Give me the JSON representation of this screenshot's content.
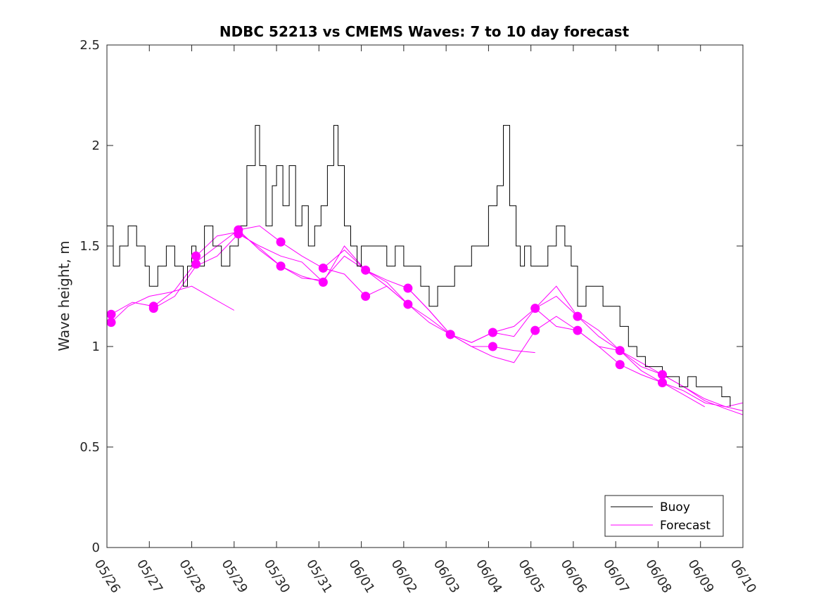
{
  "chart_data": {
    "type": "line",
    "title": "NDBC 52213 vs CMEMS Waves: 7 to 10 day forecast",
    "xlabel": "",
    "ylabel": "Wave height, m",
    "ylim": [
      0,
      2.5
    ],
    "xlim": [
      0,
      15
    ],
    "y_ticks": [
      "0",
      "0.5",
      "1",
      "1.5",
      "2",
      "2.5"
    ],
    "x_ticks": [
      "05/26",
      "05/27",
      "05/28",
      "05/29",
      "05/30",
      "05/31",
      "06/01",
      "06/02",
      "06/03",
      "06/04",
      "06/05",
      "06/06",
      "06/07",
      "06/08",
      "06/09",
      "06/10"
    ],
    "grid": false,
    "legend": {
      "location": "bottom-right",
      "entries": [
        "Buoy",
        "Forecast"
      ]
    },
    "colors": {
      "buoy": "#000000",
      "forecast": "#ff00ff"
    },
    "buoy": {
      "name": "Buoy",
      "x": [
        0,
        0.15,
        0.3,
        0.5,
        0.7,
        0.9,
        1.0,
        1.2,
        1.4,
        1.6,
        1.8,
        1.9,
        2.0,
        2.1,
        2.3,
        2.5,
        2.7,
        2.9,
        3.1,
        3.3,
        3.5,
        3.6,
        3.75,
        3.9,
        4.0,
        4.15,
        4.3,
        4.45,
        4.6,
        4.75,
        4.9,
        5.05,
        5.2,
        5.35,
        5.45,
        5.6,
        5.75,
        5.9,
        6.0,
        6.2,
        6.4,
        6.6,
        6.8,
        7.0,
        7.2,
        7.4,
        7.6,
        7.8,
        8.0,
        8.2,
        8.4,
        8.6,
        8.8,
        9.0,
        9.2,
        9.35,
        9.5,
        9.65,
        9.75,
        9.85,
        10.0,
        10.2,
        10.4,
        10.6,
        10.8,
        10.95,
        11.1,
        11.3,
        11.5,
        11.7,
        11.9,
        12.1,
        12.3,
        12.5,
        12.7,
        12.9,
        13.1,
        13.3,
        13.5,
        13.7,
        13.9,
        14.1,
        14.3,
        14.5,
        14.7
      ],
      "y": [
        1.6,
        1.4,
        1.5,
        1.6,
        1.5,
        1.4,
        1.3,
        1.4,
        1.5,
        1.4,
        1.3,
        1.4,
        1.5,
        1.4,
        1.6,
        1.5,
        1.4,
        1.5,
        1.6,
        1.9,
        2.1,
        1.9,
        1.6,
        1.8,
        1.9,
        1.7,
        1.9,
        1.6,
        1.7,
        1.5,
        1.6,
        1.7,
        1.9,
        2.1,
        1.9,
        1.6,
        1.5,
        1.4,
        1.5,
        1.5,
        1.5,
        1.4,
        1.5,
        1.4,
        1.4,
        1.3,
        1.2,
        1.3,
        1.3,
        1.4,
        1.4,
        1.5,
        1.5,
        1.7,
        1.8,
        2.1,
        1.7,
        1.5,
        1.4,
        1.5,
        1.4,
        1.4,
        1.5,
        1.6,
        1.5,
        1.4,
        1.2,
        1.3,
        1.3,
        1.2,
        1.2,
        1.1,
        1.0,
        0.95,
        0.9,
        0.9,
        0.85,
        0.85,
        0.8,
        0.85,
        0.8,
        0.8,
        0.8,
        0.75,
        0.7
      ]
    },
    "series": [
      {
        "x": [
          0.1,
          0.5,
          1.0,
          1.5,
          2.0,
          2.5,
          3.0
        ],
        "y": [
          1.12,
          1.2,
          1.25,
          1.27,
          1.3,
          1.24,
          1.18
        ]
      },
      {
        "x": [
          0.1,
          0.6,
          1.1,
          1.6,
          2.1,
          2.6,
          3.1,
          3.6,
          4.1
        ],
        "y": [
          1.16,
          1.22,
          1.2,
          1.28,
          1.42,
          1.5,
          1.58,
          1.48,
          1.4
        ]
      },
      {
        "x": [
          1.1,
          1.6,
          2.1,
          2.6,
          3.1,
          3.6,
          4.1,
          4.6,
          5.1
        ],
        "y": [
          1.19,
          1.25,
          1.4,
          1.45,
          1.56,
          1.5,
          1.45,
          1.42,
          1.32
        ]
      },
      {
        "x": [
          2.1,
          2.6,
          3.1,
          3.6,
          4.1,
          4.6,
          5.1,
          5.6,
          6.1
        ],
        "y": [
          1.45,
          1.55,
          1.57,
          1.49,
          1.4,
          1.34,
          1.33,
          1.45,
          1.38
        ]
      },
      {
        "x": [
          3.1,
          3.6,
          4.1,
          4.6,
          5.1,
          5.6,
          6.1,
          6.6,
          7.1
        ],
        "y": [
          1.58,
          1.6,
          1.52,
          1.45,
          1.39,
          1.36,
          1.25,
          1.3,
          1.21
        ]
      },
      {
        "x": [
          4.1,
          4.6,
          5.1,
          5.6,
          6.1,
          6.6,
          7.1,
          7.6,
          8.1
        ],
        "y": [
          1.4,
          1.35,
          1.32,
          1.5,
          1.38,
          1.33,
          1.29,
          1.18,
          1.06
        ]
      },
      {
        "x": [
          5.1,
          5.6,
          6.1,
          6.6,
          7.1,
          7.6,
          8.1,
          8.6,
          9.1
        ],
        "y": [
          1.39,
          1.48,
          1.38,
          1.32,
          1.21,
          1.14,
          1.06,
          1.02,
          1.07
        ]
      },
      {
        "x": [
          6.1,
          6.6,
          7.1,
          7.6,
          8.1,
          8.6,
          9.1,
          9.6,
          10.1
        ],
        "y": [
          1.38,
          1.3,
          1.21,
          1.12,
          1.06,
          1.0,
          1.0,
          0.98,
          0.97
        ]
      },
      {
        "x": [
          7.1,
          7.6,
          8.1,
          8.6,
          9.1,
          9.6,
          10.1,
          10.6,
          11.1
        ],
        "y": [
          1.29,
          1.18,
          1.06,
          1.02,
          1.07,
          1.1,
          1.19,
          1.3,
          1.15
        ]
      },
      {
        "x": [
          8.1,
          8.6,
          9.1,
          9.6,
          10.1,
          10.6,
          11.1,
          11.6,
          12.1
        ],
        "y": [
          1.06,
          1.0,
          0.95,
          0.92,
          1.08,
          1.15,
          1.08,
          1.0,
          0.98
        ]
      },
      {
        "x": [
          9.1,
          9.6,
          10.1,
          10.6,
          11.1,
          11.6,
          12.1,
          12.6,
          13.1
        ],
        "y": [
          1.07,
          1.05,
          1.19,
          1.25,
          1.15,
          1.05,
          0.98,
          0.92,
          0.86
        ]
      },
      {
        "x": [
          10.1,
          10.6,
          11.1,
          11.6,
          12.1,
          12.6,
          13.1,
          13.6,
          14.1
        ],
        "y": [
          1.19,
          1.1,
          1.08,
          1.0,
          0.91,
          0.86,
          0.82,
          0.76,
          0.7
        ]
      },
      {
        "x": [
          11.1,
          11.6,
          12.1,
          12.6,
          13.1,
          13.6,
          14.1,
          14.6,
          15.0
        ],
        "y": [
          1.15,
          1.08,
          0.98,
          0.88,
          0.82,
          0.78,
          0.72,
          0.7,
          0.68
        ]
      },
      {
        "x": [
          12.1,
          12.6,
          13.1,
          13.6,
          14.1,
          14.6,
          15.0
        ],
        "y": [
          0.98,
          0.9,
          0.86,
          0.8,
          0.74,
          0.7,
          0.72
        ]
      },
      {
        "x": [
          13.1,
          13.6,
          14.1,
          14.6,
          15.0
        ],
        "y": [
          0.86,
          0.8,
          0.73,
          0.69,
          0.66
        ]
      }
    ],
    "markers": {
      "x": [
        0.1,
        0.1,
        1.1,
        1.1,
        2.1,
        2.1,
        3.1,
        3.1,
        4.1,
        4.1,
        5.1,
        5.1,
        6.1,
        6.1,
        7.1,
        7.1,
        8.1,
        8.1,
        9.1,
        9.1,
        10.1,
        10.1,
        11.1,
        11.1,
        12.1,
        12.1,
        13.1,
        13.1
      ],
      "y": [
        1.12,
        1.16,
        1.19,
        1.2,
        1.41,
        1.45,
        1.56,
        1.58,
        1.4,
        1.52,
        1.32,
        1.39,
        1.25,
        1.38,
        1.21,
        1.29,
        1.06,
        1.06,
        1.0,
        1.07,
        1.08,
        1.19,
        1.08,
        1.15,
        0.91,
        0.98,
        0.82,
        0.86
      ]
    }
  }
}
